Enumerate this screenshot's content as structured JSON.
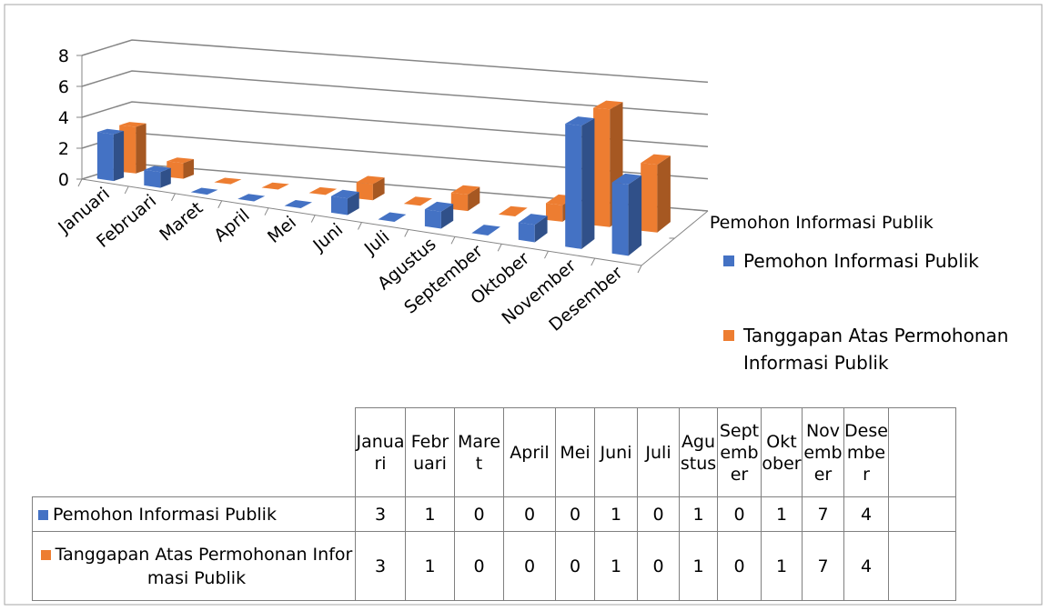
{
  "chart_data": {
    "type": "bar3d",
    "categories": [
      "Januari",
      "Februari",
      "Maret",
      "April",
      "Mei",
      "Juni",
      "Juli",
      "Agustus",
      "September",
      "Oktober",
      "November",
      "Desember"
    ],
    "series": [
      {
        "name": "Pemohon Informasi Publik",
        "color": "#4472c4",
        "values": [
          3,
          1,
          0,
          0,
          0,
          1,
          0,
          1,
          0,
          1,
          7,
          4
        ]
      },
      {
        "name": "Tanggapan Atas Permohonan Informasi Publik",
        "color": "#ed7d31",
        "values": [
          3,
          1,
          0,
          0,
          0,
          1,
          0,
          1,
          0,
          1,
          7,
          4
        ]
      }
    ],
    "ylim": [
      0,
      8
    ],
    "yticks": [
      0,
      2,
      4,
      6,
      8
    ],
    "grid": true,
    "legend": "right",
    "data_table": true
  }
}
